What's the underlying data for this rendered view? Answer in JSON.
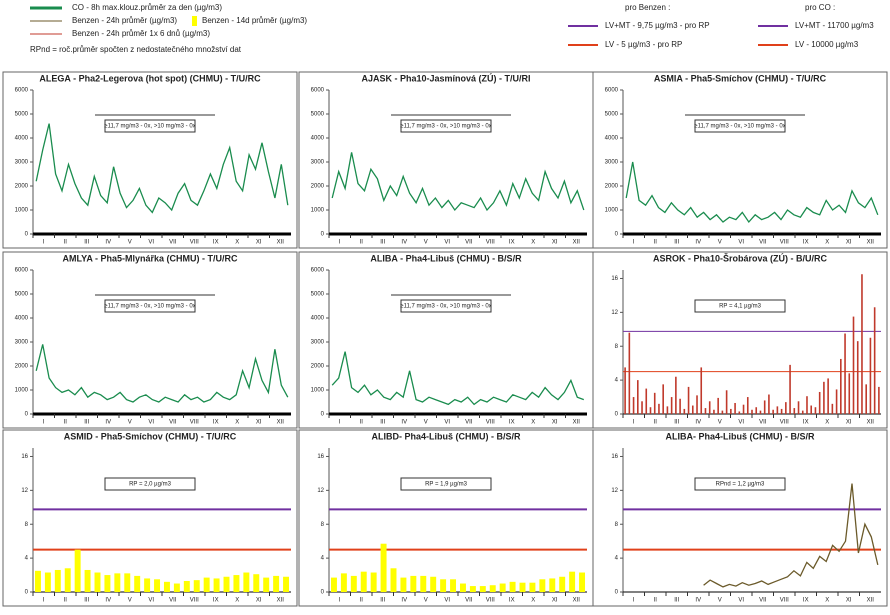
{
  "legend": {
    "co": "CO - 8h max.klouz.průměr za den (µg/m3)",
    "benz24": "Benzen - 24h průměr (µg/m3)",
    "benz14": "Benzen - 14d průměr (µg/m3)",
    "benz6": "Benzen - 24h průměr 1x 6 dnů (µg/m3)",
    "rpnd": "RPnd = roč.průměr spočten z nedostatečného množství dat",
    "benzHead": "pro Benzen :",
    "benzLvmt": "LV+MT - 9,75 µg/m3 - pro RP",
    "benzLv": "LV - 5 µg/m3 - pro RP",
    "coHead": "pro CO :",
    "coLvmt": "LV+MT - 11700 µg/m3",
    "coLv": "LV - 10000 µg/m3"
  },
  "months": [
    "I",
    "II",
    "III",
    "IV",
    "V",
    "VI",
    "VII",
    "VIII",
    "IX",
    "X",
    "XI",
    "XII"
  ],
  "chart_data": [
    {
      "type": "line",
      "title": "ALEGA - Pha2-Legerova (hot spot) (CHMU) - T/U/RC",
      "annotation": "≥11,7 mg/m3 - 0x, >10 mg/m3 - 0x",
      "color": "#1a8c4e",
      "ylim": [
        0,
        6000
      ],
      "yticks": [
        0,
        1000,
        2000,
        3000,
        4000,
        5000,
        6000
      ],
      "values": [
        2200,
        3500,
        4600,
        2500,
        1800,
        2900,
        2100,
        1500,
        1200,
        2400,
        1600,
        1300,
        2800,
        1700,
        1100,
        1400,
        1900,
        1200,
        900,
        1500,
        1300,
        1000,
        1700,
        2100,
        1400,
        1200,
        1800,
        2500,
        1900,
        2900,
        3600,
        2200,
        1800,
        3300,
        2700,
        3800,
        2600,
        1500,
        2900,
        1200
      ]
    },
    {
      "type": "line",
      "title": "AJASK - Pha10-Jasmínová (ZÚ) - T/U/RI",
      "annotation": "≥11,7 mg/m3 - 0x, >10 mg/m3 - 0x",
      "color": "#1a8c4e",
      "ylim": [
        0,
        6000
      ],
      "yticks": [
        0,
        1000,
        2000,
        3000,
        4000,
        5000,
        6000
      ],
      "values": [
        1500,
        2600,
        1900,
        3400,
        2100,
        1800,
        2700,
        2300,
        1400,
        2000,
        1600,
        2400,
        1700,
        1300,
        1900,
        1200,
        1500,
        1100,
        1400,
        1000,
        1300,
        1200,
        1100,
        1500,
        1000,
        1300,
        1800,
        1200,
        2100,
        1500,
        2300,
        1700,
        1400,
        2600,
        1900,
        1500,
        2200,
        1300,
        1800,
        1000
      ]
    },
    {
      "type": "line",
      "title": "ASMIA - Pha5-Smíchov (CHMU) - T/U/RC",
      "annotation": "≥11,7 mg/m3 - 0x, >10 mg/m3 - 0x",
      "color": "#1a8c4e",
      "ylim": [
        0,
        6000
      ],
      "yticks": [
        0,
        1000,
        2000,
        3000,
        4000,
        5000,
        6000
      ],
      "values": [
        1500,
        3000,
        1400,
        1200,
        1600,
        1100,
        900,
        1300,
        1000,
        800,
        1100,
        700,
        900,
        600,
        800,
        500,
        700,
        600,
        900,
        500,
        800,
        600,
        700,
        900,
        600,
        1000,
        800,
        700,
        1100,
        900,
        800,
        1400,
        1000,
        1200,
        900,
        1800,
        1300,
        1100,
        1500,
        800
      ]
    },
    {
      "type": "line",
      "title": "AMLYA - Pha5-Mlynářka (CHMU) - T/U/RC",
      "annotation": "≥11,7 mg/m3 - 0x, >10 mg/m3 - 0x",
      "color": "#1a8c4e",
      "ylim": [
        0,
        6000
      ],
      "yticks": [
        0,
        1000,
        2000,
        3000,
        4000,
        5000,
        6000
      ],
      "values": [
        1800,
        2900,
        1500,
        1100,
        900,
        1000,
        800,
        1100,
        700,
        900,
        800,
        600,
        700,
        900,
        600,
        500,
        700,
        800,
        600,
        500,
        700,
        600,
        500,
        800,
        600,
        700,
        500,
        600,
        900,
        700,
        600,
        800,
        1800,
        1100,
        2300,
        1400,
        900,
        2700,
        1200,
        700
      ]
    },
    {
      "type": "line",
      "title": "ALIBA - Pha4-Libuš (CHMU) - B/S/R",
      "annotation": "≥11,7 mg/m3 - 0x, >10 mg/m3 - 0x",
      "color": "#1a8c4e",
      "ylim": [
        0,
        6000
      ],
      "yticks": [
        0,
        1000,
        2000,
        3000,
        4000,
        5000,
        6000
      ],
      "values": [
        1200,
        1500,
        2600,
        1100,
        900,
        1200,
        800,
        1000,
        700,
        600,
        900,
        700,
        1800,
        600,
        500,
        700,
        600,
        500,
        400,
        600,
        500,
        700,
        400,
        600,
        500,
        700,
        600,
        500,
        800,
        700,
        600,
        900,
        700,
        1100,
        800,
        600,
        900,
        1400,
        700,
        600
      ]
    },
    {
      "type": "bar",
      "title": "ASROK - Pha10-Šrobárova (ZÚ) - B/U/RC",
      "annotation": "RP = 4,1 µg/m3",
      "color": "#c0392b",
      "thin": true,
      "ylim": [
        0,
        17
      ],
      "yticks": [
        0,
        4,
        8,
        12,
        16
      ],
      "limits": [
        {
          "value": 9.75,
          "color": "#7030a0"
        },
        {
          "value": 5,
          "color": "#e0401a"
        }
      ],
      "values": [
        5.5,
        9.6,
        2,
        4,
        1.5,
        3,
        0.8,
        2.5,
        1.2,
        3.5,
        0.9,
        2,
        4.4,
        1.8,
        0.6,
        3.2,
        1,
        2.2,
        5.5,
        0.7,
        1.5,
        0.5,
        1.9,
        0.4,
        2.8,
        0.6,
        1.3,
        0.3,
        1.1,
        2,
        0.5,
        0.8,
        0.4,
        1.6,
        2.3,
        0.5,
        0.9,
        0.6,
        1.4,
        5.8,
        0.7,
        1.5,
        0.4,
        2.1,
        1,
        0.8,
        2.6,
        3.8,
        4.2,
        1.2,
        2.9,
        6.5,
        9.5,
        4.8,
        11.5,
        8.6,
        16.5,
        3.5,
        9,
        12.6,
        3.2
      ]
    },
    {
      "type": "bar",
      "title": "ASMID - Pha5-Smíchov (CHMU) - T/U/RC",
      "annotation": "RP = 2,0 µg/m3",
      "color": "#ffff00",
      "ylim": [
        0,
        17
      ],
      "yticks": [
        0,
        4,
        8,
        12,
        16
      ],
      "limits": [
        {
          "value": 9.75,
          "color": "#7030a0"
        },
        {
          "value": 5,
          "color": "#e0401a"
        }
      ],
      "values": [
        2.5,
        2.3,
        2.6,
        2.8,
        5,
        2.6,
        2.3,
        2,
        2.2,
        2.2,
        1.9,
        1.6,
        1.5,
        1.2,
        1,
        1.3,
        1.4,
        1.7,
        1.6,
        1.8,
        2,
        2.3,
        2.1,
        1.7,
        1.9,
        1.8
      ]
    },
    {
      "type": "bar",
      "title": "ALIBD- Pha4-Libuš (CHMU) - B/S/R",
      "annotation": "RP = 1,9 µg/m3",
      "color": "#ffff00",
      "ylim": [
        0,
        17
      ],
      "yticks": [
        0,
        4,
        8,
        12,
        16
      ],
      "limits": [
        {
          "value": 9.75,
          "color": "#7030a0"
        },
        {
          "value": 5,
          "color": "#e0401a"
        }
      ],
      "values": [
        1.7,
        2.2,
        1.9,
        2.4,
        2.3,
        5.7,
        2.8,
        1.7,
        1.9,
        1.9,
        1.8,
        1.5,
        1.5,
        1,
        0.7,
        0.7,
        0.8,
        1,
        1.2,
        1.1,
        1.1,
        1.5,
        1.6,
        1.8,
        2.4,
        2.3
      ]
    },
    {
      "type": "line",
      "title": "ALIBA- Pha4-Libuš (CHMU) - B/S/R",
      "annotation": "RPnd = 1,2 µg/m3",
      "color": "#6b5a2a",
      "ylim": [
        0,
        17
      ],
      "yticks": [
        0,
        4,
        8,
        12,
        16
      ],
      "limits": [
        {
          "value": 9.75,
          "color": "#7030a0"
        },
        {
          "value": 5,
          "color": "#e0401a"
        }
      ],
      "values": [
        null,
        null,
        null,
        null,
        null,
        null,
        null,
        null,
        null,
        null,
        null,
        null,
        0.8,
        1.4,
        1,
        0.6,
        0.9,
        0.7,
        1.1,
        0.8,
        1,
        1.3,
        0.9,
        1.2,
        1.5,
        1.8,
        2.5,
        1.9,
        3.5,
        2.8,
        4.2,
        3.6,
        5.5,
        4.8,
        6,
        12.8,
        4.6,
        8,
        6.5,
        3.2
      ]
    }
  ]
}
